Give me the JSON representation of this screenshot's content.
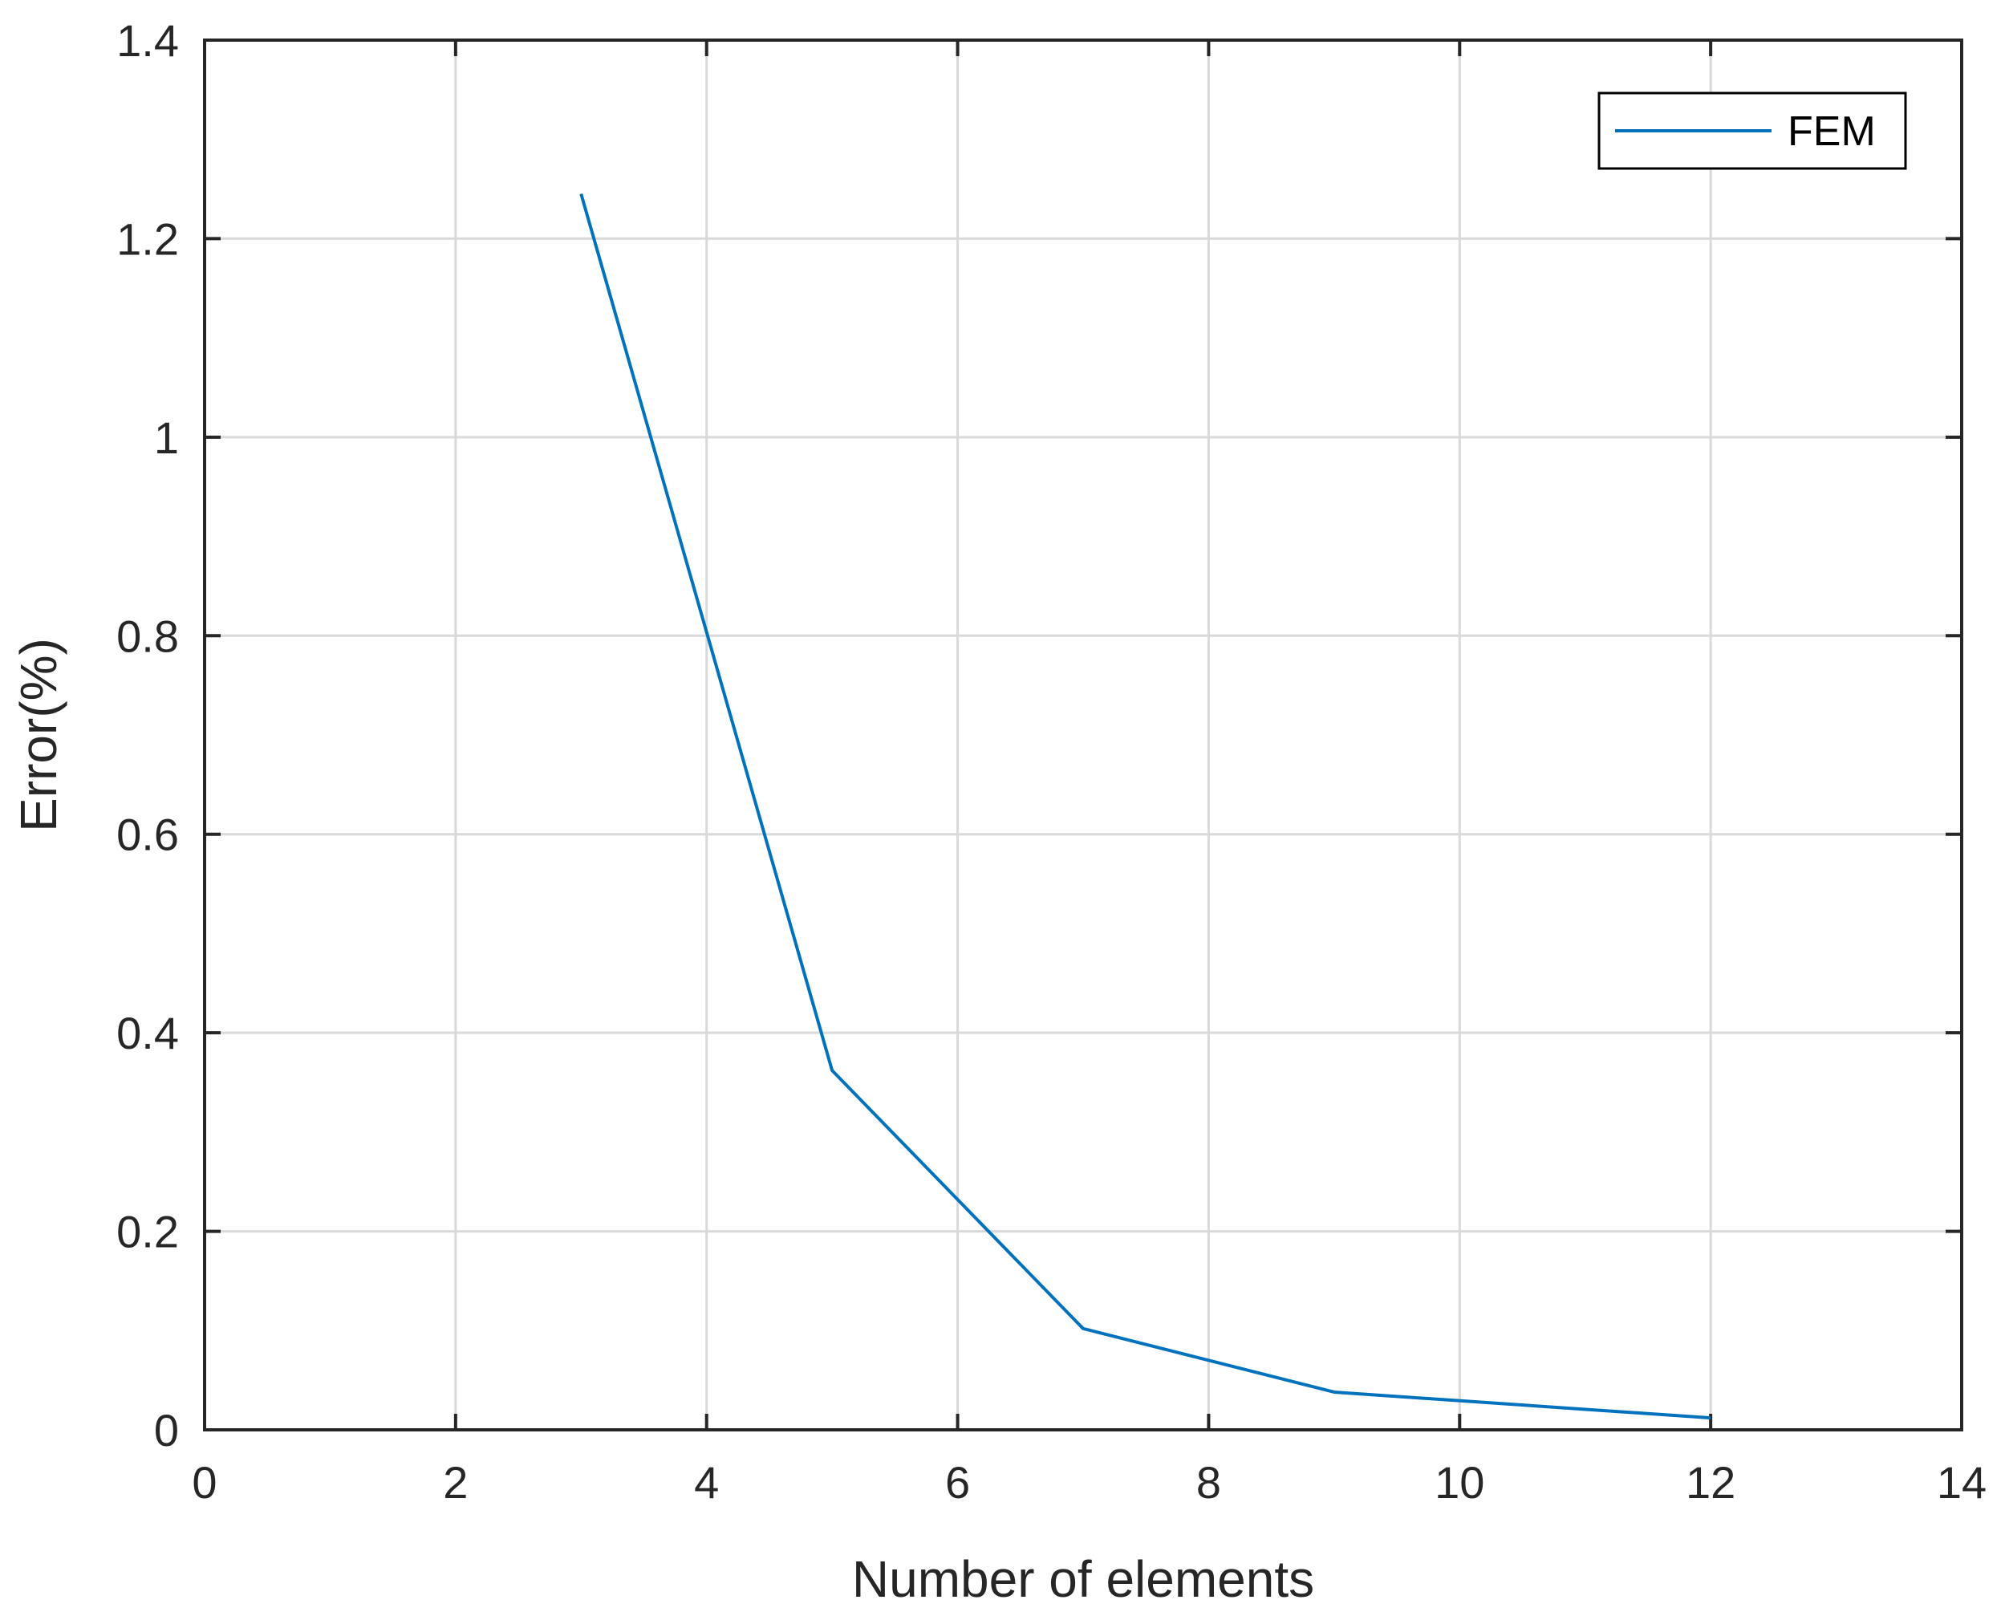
{
  "chart_data": {
    "type": "line",
    "xlabel": "Number of elements",
    "ylabel": "Error(%)",
    "xlim": [
      0,
      14
    ],
    "ylim": [
      0,
      1.4
    ],
    "xticks": [
      0,
      2,
      4,
      6,
      8,
      10,
      12,
      14
    ],
    "yticks": [
      0,
      0.2,
      0.4,
      0.6,
      0.8,
      1,
      1.2,
      1.4
    ],
    "xtick_labels": [
      "0",
      "2",
      "4",
      "6",
      "8",
      "10",
      "12",
      "14"
    ],
    "ytick_labels": [
      "0",
      "0.2",
      "0.4",
      "0.6",
      "0.8",
      "1",
      "1.2",
      "1.4"
    ],
    "grid": true,
    "legend_position": "top-right",
    "series": [
      {
        "name": "FEM",
        "color": "#0072BD",
        "x": [
          3,
          5,
          7,
          9,
          12
        ],
        "y": [
          1.245,
          0.362,
          0.102,
          0.038,
          0.012
        ]
      }
    ]
  }
}
